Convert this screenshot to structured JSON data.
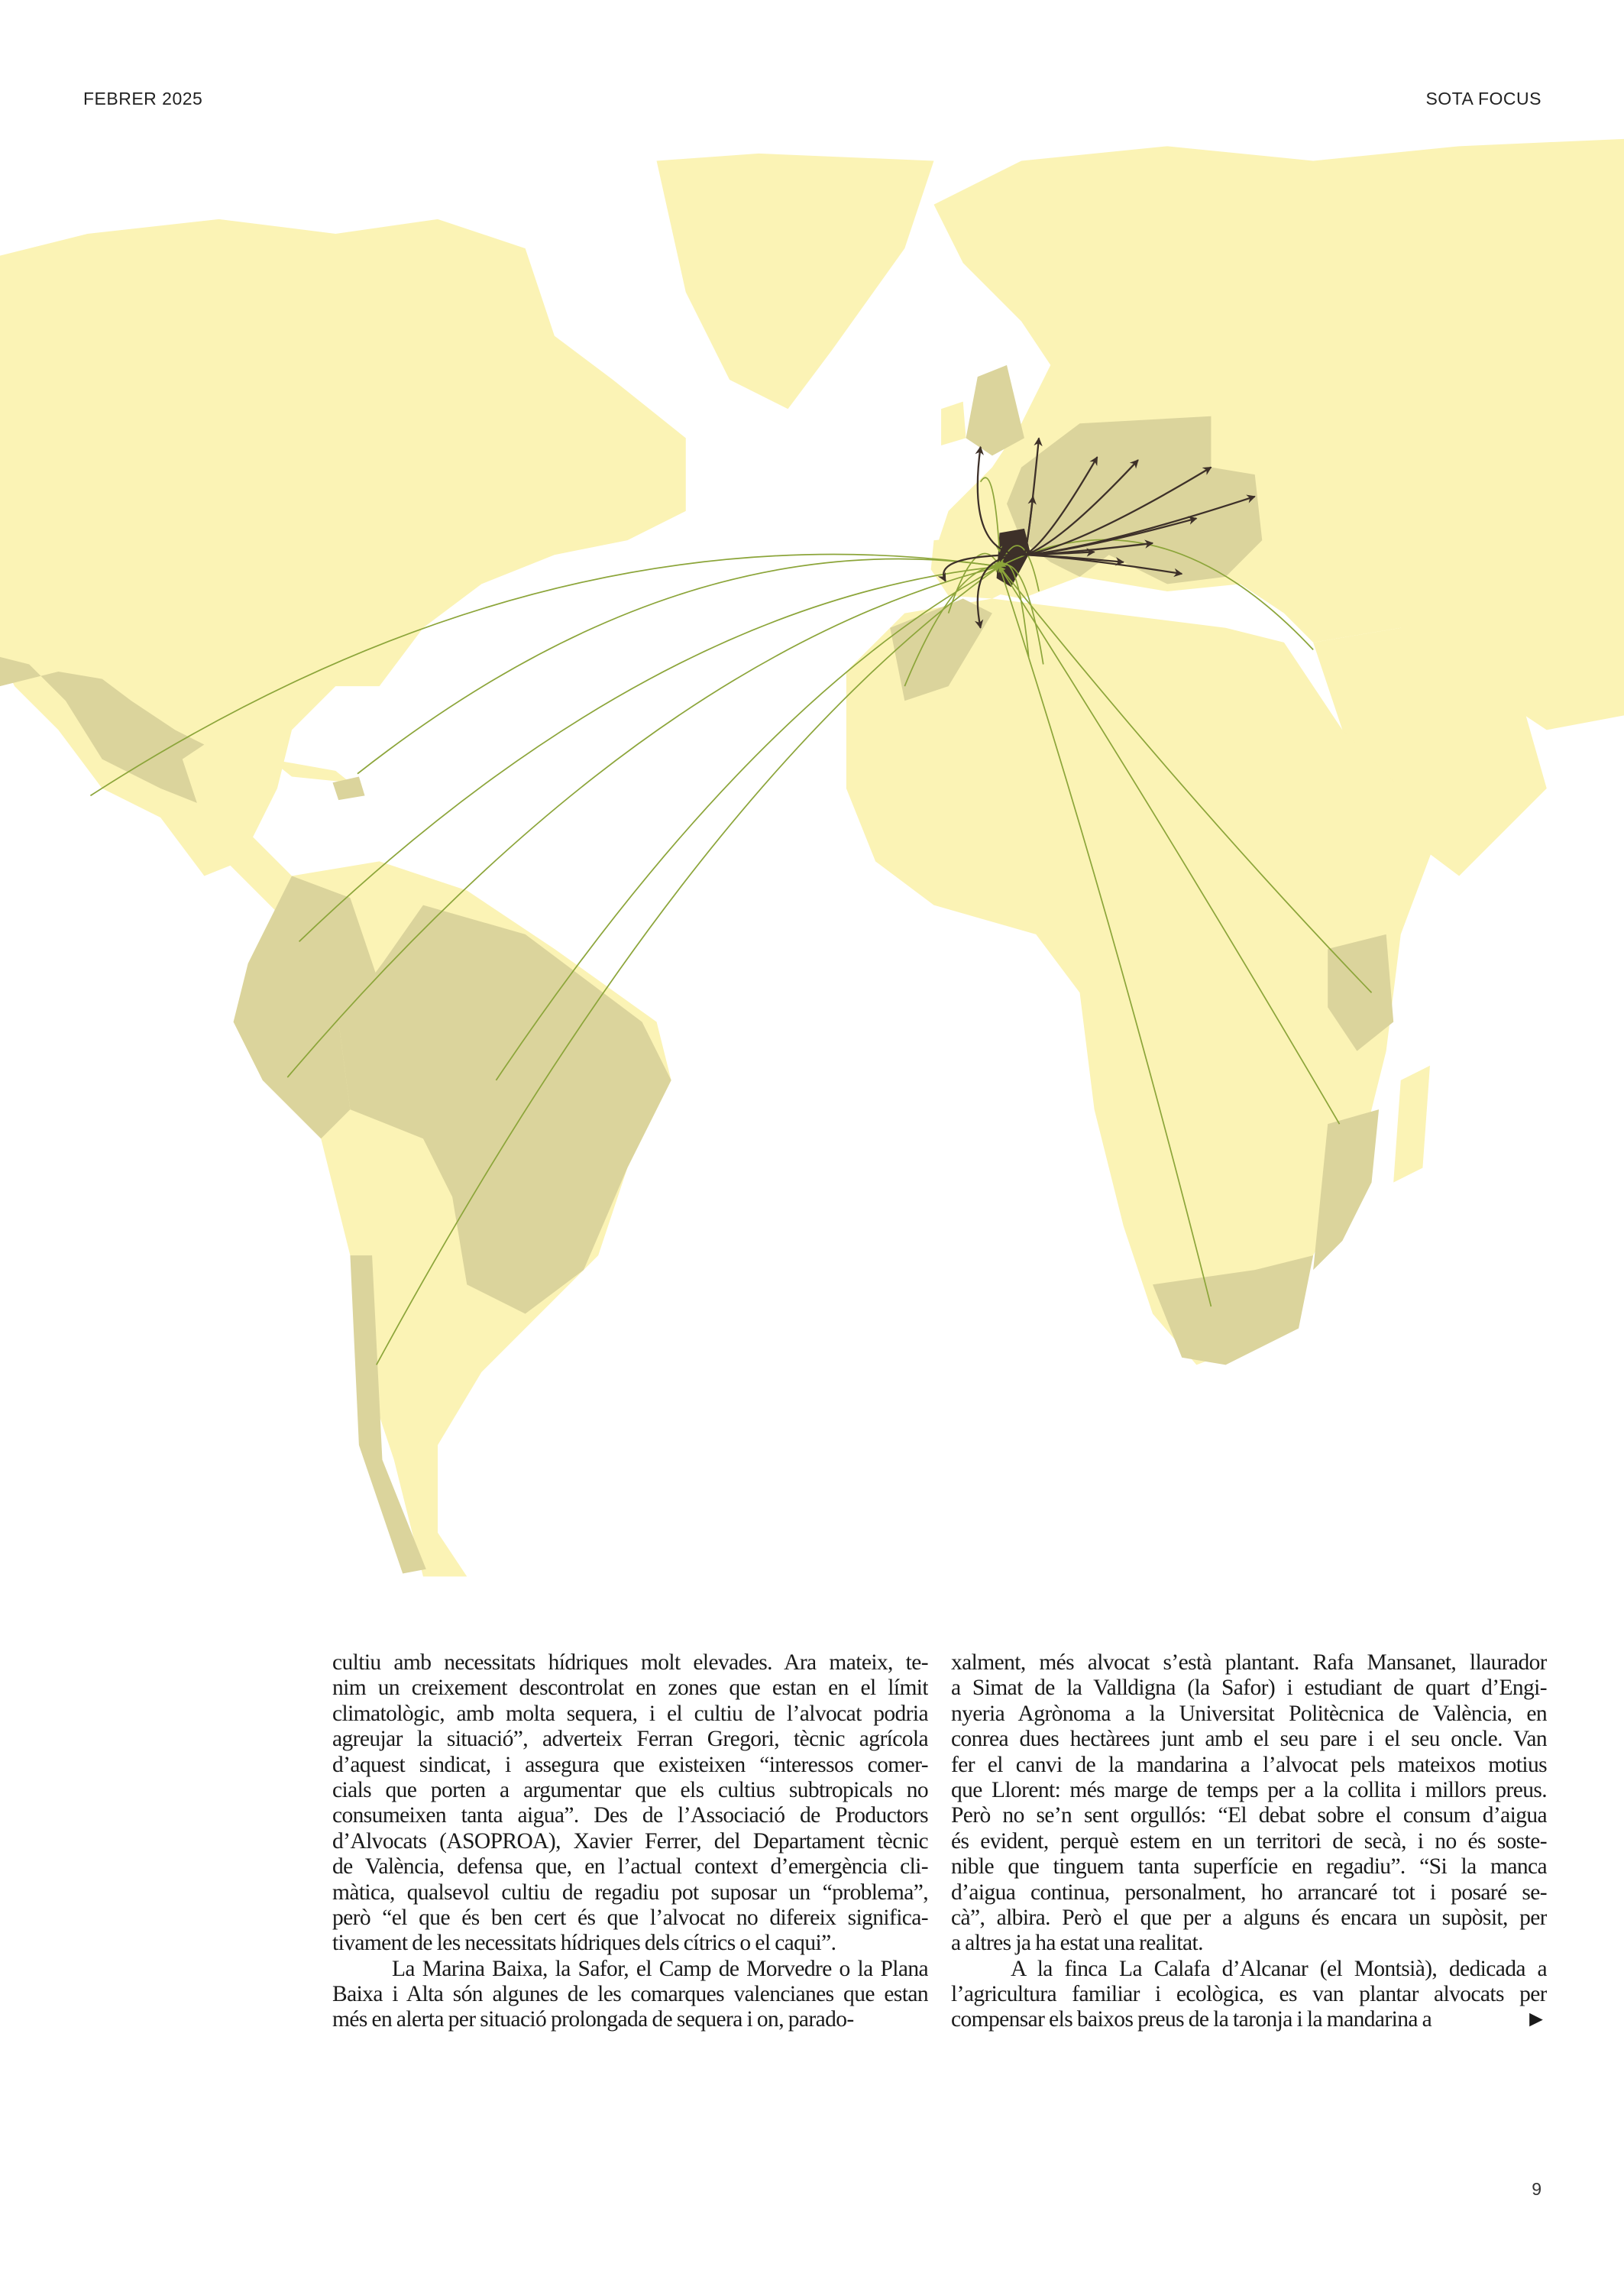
{
  "header": {
    "issue": "FEBRER 2025",
    "section": "SOTA FOCUS"
  },
  "colors": {
    "land": "#fbf3b5",
    "highlight_land": "#dbd49c",
    "origin_region": "#3d3029",
    "import_lines": "#8ca53a",
    "export_arrows": "#3d3029"
  },
  "article": {
    "left_column": [
      "cultiu amb necessitats hídriques molt elevades. Ara mateix, te-",
      "nim un creixement descontrolat en zones que estan en el límit",
      "climatològic, amb molta sequera, i el cultiu de l’alvocat podria",
      "agreujar la situació”, adverteix Ferran Gregori, tècnic agrícola",
      "d’aquest sindicat, i assegura que existeixen “interessos comer-",
      "cials que porten a argumentar que els cultius subtropicals no",
      "consumeixen tanta aigua”. Des de l’Associació de Productors",
      "d’Alvocats (ASOPROA), Xavier Ferrer, del Departament tècnic",
      "de València, defensa que, en l’actual context d’emergència cli-",
      "màtica, qualsevol cultiu de regadiu pot suposar un “problema”,",
      "però “el que és ben cert és que l’alvocat no difereix significa-",
      "tivament de les necessitats hídriques dels cítrics o el caqui”.",
      "La Marina Baixa, la Safor, el Camp de Morvedre o la Plana",
      "Baixa i Alta són algunes de les comarques valencianes que estan",
      "més en alerta per situació prolongada de sequera i on, parado-"
    ],
    "right_column": [
      "xalment, més alvocat s’està plantant. Rafa Mansanet, llaurador",
      "a Simat de la Valldigna (la Safor) i estudiant de quart d’Engi-",
      "nyeria Agrònoma a la Universitat Politècnica de València, en",
      "conrea dues hectàrees junt amb el seu pare i el seu oncle. Van",
      "fer el canvi de la mandarina a l’alvocat pels mateixos motius",
      "que Llorent: més marge de temps per a la collita i millors preus.",
      "Però no se’n sent orgullós: “El debat sobre el consum d’aigua",
      "és evident, perquè estem en un territori de secà, i no és soste-",
      "nible que tinguem tanta superfície en regadiu”. “Si la manca",
      "d’aigua continua, personalment, ho arrancaré tot i posaré se-",
      "cà”, albira. Però el que per a alguns és encara un supòsit, per",
      "a altres ja ha estat una realitat.",
      "A la finca La Calafa d’Alcanar (el Montsià), dedicada a",
      "l’agricultura familiar i ecològica, es van plantar alvocats per",
      "compensar els baixos preus de la taronja i la mandarina a"
    ],
    "continue_marker": "►"
  },
  "page_number": "9"
}
